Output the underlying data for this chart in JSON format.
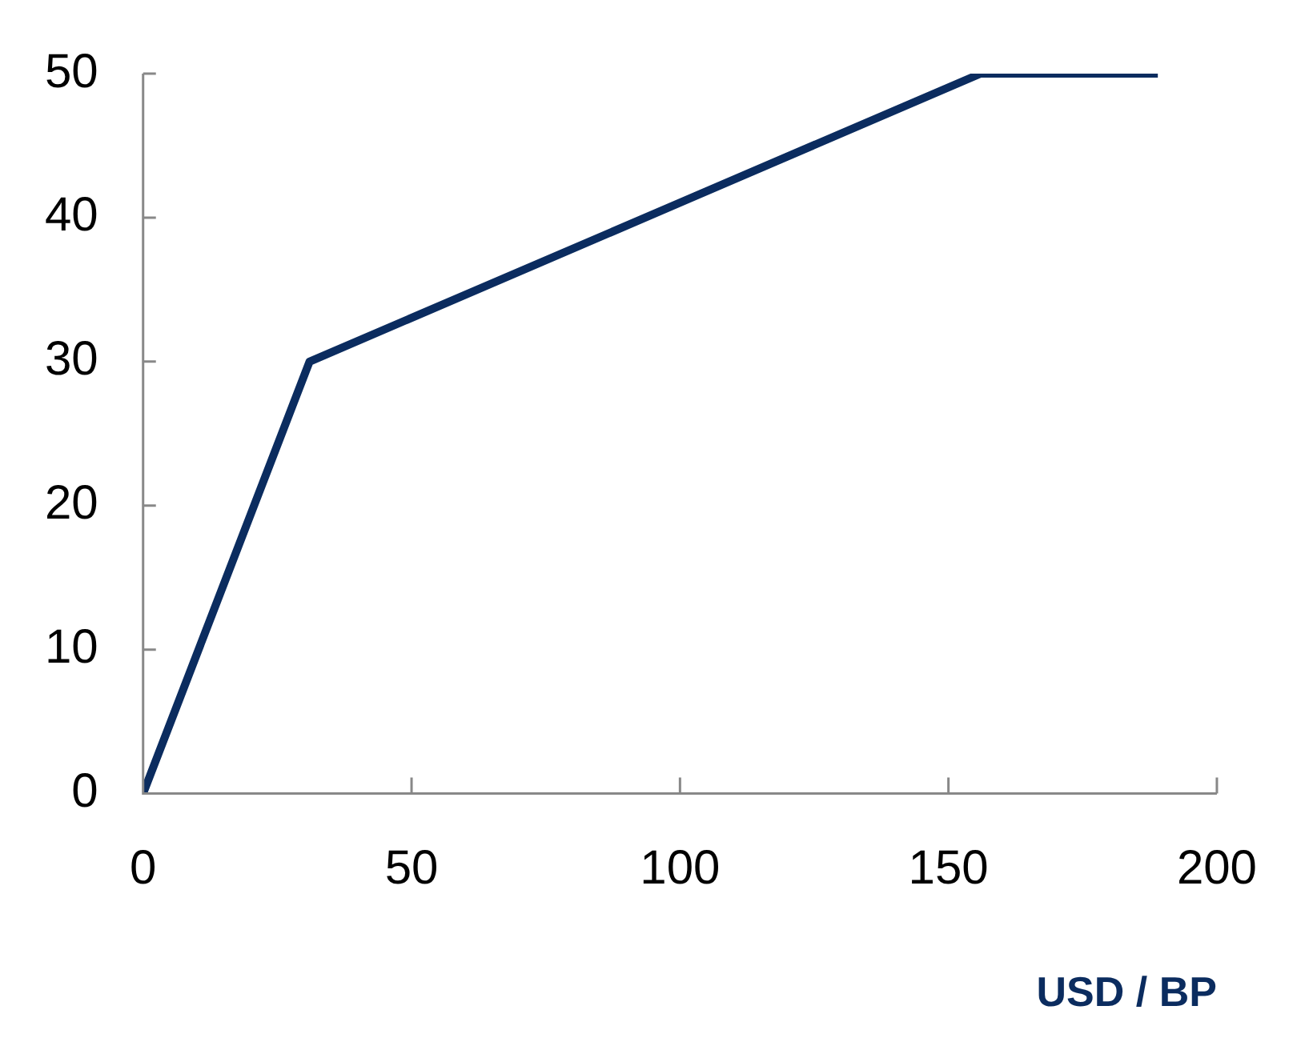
{
  "chart_data": {
    "type": "line",
    "xlabel": "USD / BP",
    "x": [
      0,
      31,
      156,
      189
    ],
    "series": [
      {
        "color": "#0b2c5f",
        "values": [
          0,
          30,
          50,
          50
        ]
      }
    ],
    "xlim": [
      0,
      200
    ],
    "xticks": [
      0,
      50,
      100,
      150,
      200
    ],
    "ylim": [
      0,
      50
    ],
    "yticks": [
      0,
      10,
      20,
      30,
      40,
      50
    ],
    "grid": false,
    "legend": false,
    "marker": "none",
    "line_style": "solid"
  }
}
